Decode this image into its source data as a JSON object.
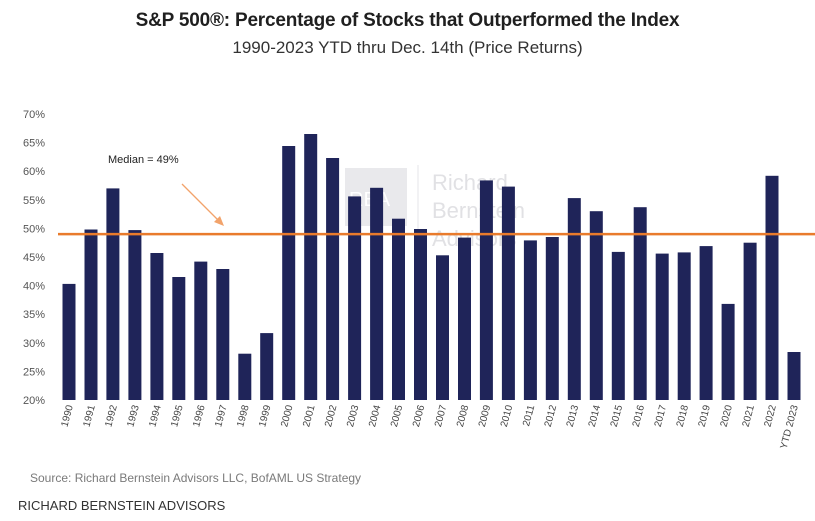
{
  "title": "S&P 500®:  Percentage of Stocks that Outperformed the Index",
  "subtitle": "1990-2023 YTD thru Dec. 14th (Price Returns)",
  "source": "Source: Richard Bernstein Advisors LLC, BofAML US Strategy",
  "footer": "RICHARD BERNSTEIN ADVISORS",
  "watermark": {
    "lines": [
      "Richard",
      "Bernstein",
      "Advisors"
    ],
    "monogram": "RBA"
  },
  "colors": {
    "bar": "#1f2459",
    "median": "#e97b2c",
    "arrow": "#f2a36b"
  },
  "chart_data": {
    "type": "bar",
    "title": "S&P 500®:  Percentage of Stocks that Outperformed the Index",
    "subtitle": "1990-2023 YTD thru Dec. 14th (Price Returns)",
    "categories": [
      "1990",
      "1991",
      "1992",
      "1993",
      "1994",
      "1995",
      "1996",
      "1997",
      "1998",
      "1999",
      "2000",
      "2001",
      "2002",
      "2003",
      "2004",
      "2005",
      "2006",
      "2007",
      "2008",
      "2009",
      "2010",
      "2011",
      "2012",
      "2013",
      "2014",
      "2015",
      "2016",
      "2017",
      "2018",
      "2019",
      "2020",
      "2021",
      "2022",
      "YTD 2023"
    ],
    "values": [
      40.3,
      49.8,
      57.0,
      49.7,
      45.7,
      41.5,
      44.2,
      42.9,
      28.1,
      31.7,
      64.4,
      66.5,
      62.3,
      55.6,
      57.1,
      51.7,
      49.9,
      45.3,
      48.4,
      58.4,
      57.3,
      47.9,
      48.5,
      55.3,
      53.0,
      45.9,
      53.7,
      45.6,
      45.8,
      46.9,
      36.8,
      47.5,
      59.2,
      28.4
    ],
    "ylim": [
      20,
      70
    ],
    "yticks": [
      "20%",
      "25%",
      "30%",
      "35%",
      "40%",
      "45%",
      "50%",
      "55%",
      "60%",
      "65%",
      "70%"
    ],
    "ytick_values": [
      20,
      25,
      30,
      35,
      40,
      45,
      50,
      55,
      60,
      65,
      70
    ],
    "median": 49,
    "median_label": "Median = 49%",
    "grid": false,
    "legend": "none"
  }
}
